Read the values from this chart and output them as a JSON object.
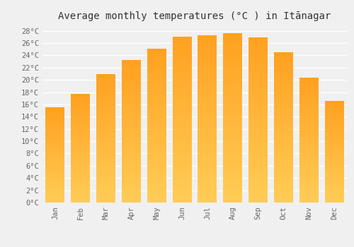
{
  "title": "Average monthly temperatures (°C ) in Itānagar",
  "months": [
    "Jan",
    "Feb",
    "Mar",
    "Apr",
    "May",
    "Jun",
    "Jul",
    "Aug",
    "Sep",
    "Oct",
    "Nov",
    "Dec"
  ],
  "values": [
    15.5,
    17.7,
    21.0,
    23.2,
    25.1,
    27.1,
    27.3,
    27.6,
    26.9,
    24.5,
    20.4,
    16.6
  ],
  "bar_color_bottom": "#FFCC55",
  "bar_color_top": "#FFA020",
  "ylim": [
    0,
    29
  ],
  "yticks": [
    0,
    2,
    4,
    6,
    8,
    10,
    12,
    14,
    16,
    18,
    20,
    22,
    24,
    26,
    28
  ],
  "background_color": "#f0f0f0",
  "grid_color": "#ffffff",
  "title_fontsize": 10,
  "tick_fontsize": 7.5,
  "bar_width": 0.75
}
